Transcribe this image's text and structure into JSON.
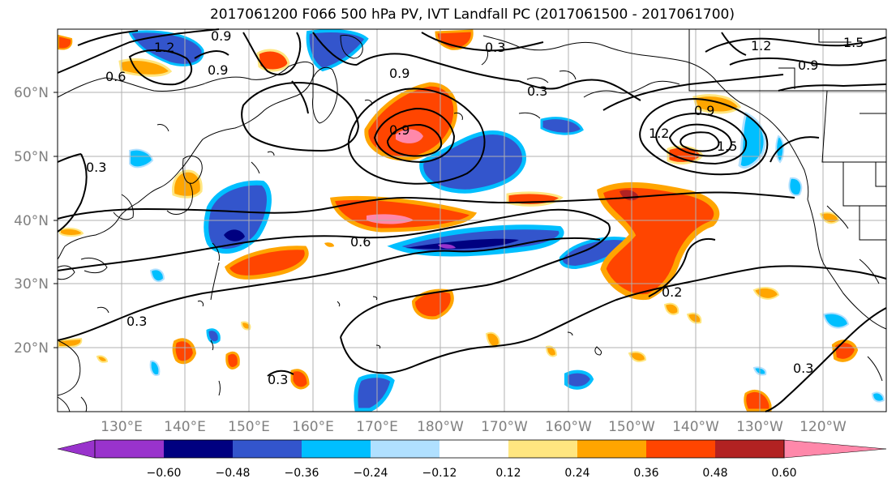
{
  "title": "2017061200 F066 500 hPa PV, IVT Landfall PC (2017061500 - 2017061700)",
  "lat_ticks": [
    "20°N",
    "30°N",
    "40°N",
    "50°N",
    "60°N"
  ],
  "lon_ticks": [
    "130°E",
    "140°E",
    "150°E",
    "160°E",
    "170°E",
    "180°W",
    "170°W",
    "160°W",
    "150°W",
    "140°W",
    "130°W",
    "120°W"
  ],
  "colorbar": {
    "ticks": [
      "−0.60",
      "−0.48",
      "−0.36",
      "−0.24",
      "−0.12",
      "0.12",
      "0.24",
      "0.36",
      "0.48",
      "0.60"
    ],
    "colors": [
      "#9933cc",
      "#000080",
      "#3355cc",
      "#00bfff",
      "#b0e0ff",
      "#ffffff",
      "#ffe680",
      "#ffa500",
      "#ff4500",
      "#b22222",
      "#ff88aa"
    ]
  },
  "contour_labels": [
    "1.2",
    "0.9",
    "0.6",
    "0.3",
    "0.9",
    "0.3",
    "0.9",
    "1.2",
    "0.9",
    "1.2",
    "1.5",
    "0.9",
    "0.6",
    "0.3",
    "0.3",
    "0.3",
    "0.3",
    "0.2",
    "1.5",
    "0.9"
  ],
  "colors": {
    "grid": "#b0b0b0",
    "contour": "#000000",
    "coast": "#000000",
    "tick_text": "#808080"
  }
}
